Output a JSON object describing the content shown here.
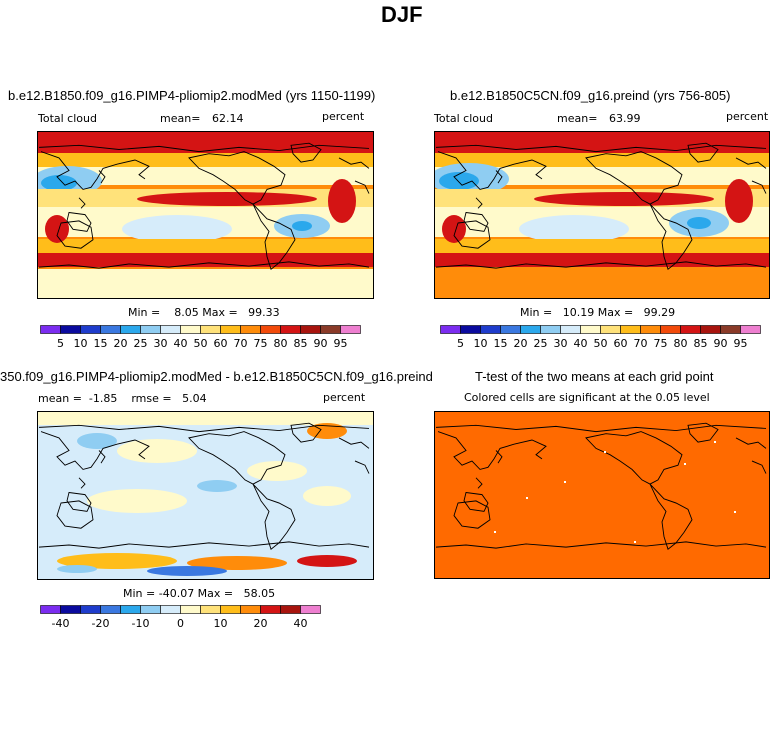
{
  "figure_title": "DJF",
  "colors": {
    "cloud_scale": [
      "#7b2cf0",
      "#0a0a9e",
      "#1e3ccc",
      "#3a78e0",
      "#2ba8ec",
      "#8fcdf2",
      "#d6ecfa",
      "#fffacb",
      "#ffe27a",
      "#ffbd1a",
      "#ff8c0a",
      "#f24a0a",
      "#d41414",
      "#a8140e",
      "#8a3a28",
      "#ee7fd0"
    ],
    "diff_scale": [
      "#7b2cf0",
      "#0a0a9e",
      "#1e3ccc",
      "#3a78e0",
      "#2ba8ec",
      "#8fcdf2",
      "#d6ecfa",
      "#fffacb",
      "#ffe27a",
      "#ffbd1a",
      "#ff8c0a",
      "#d41414",
      "#a8140e",
      "#ee7fd0"
    ],
    "ttest_fill": "#ff6a00"
  },
  "panels": [
    {
      "title": "b.e12.B1850.f09_g16.PIMP4-pliomip2.modMed (yrs 1150-1199)",
      "variable": "Total cloud",
      "stat_label": "mean=",
      "stat_value": "62.14",
      "units": "percent",
      "minmax": "Min =    8.05 Max =   99.33",
      "colorbar_labels": [
        "5",
        "10",
        "15",
        "20",
        "25",
        "30",
        "40",
        "50",
        "60",
        "70",
        "75",
        "80",
        "85",
        "90",
        "95"
      ]
    },
    {
      "title": "b.e12.B1850C5CN.f09_g16.preind (yrs 756-805)",
      "variable": "Total cloud",
      "stat_label": "mean=",
      "stat_value": "63.99",
      "units": "percent",
      "minmax": "Min =   10.19 Max =   99.29",
      "colorbar_labels": [
        "5",
        "10",
        "15",
        "20",
        "25",
        "30",
        "40",
        "50",
        "60",
        "70",
        "75",
        "80",
        "85",
        "90",
        "95"
      ]
    },
    {
      "title": "350.f09_g16.PIMP4-pliomip2.modMed - b.e12.B1850C5CN.f09_g16.preind",
      "stat_text": "mean =  -1.85    rmse =   5.04",
      "units": "percent",
      "minmax": "Min = -40.07 Max =   58.05",
      "colorbar_labels": [
        "-40",
        "-20",
        "-10",
        "0",
        "10",
        "20",
        "40"
      ]
    },
    {
      "title": "T-test of the two means at each grid point",
      "subtitle": "Colored cells are significant at the 0.05 level"
    }
  ]
}
